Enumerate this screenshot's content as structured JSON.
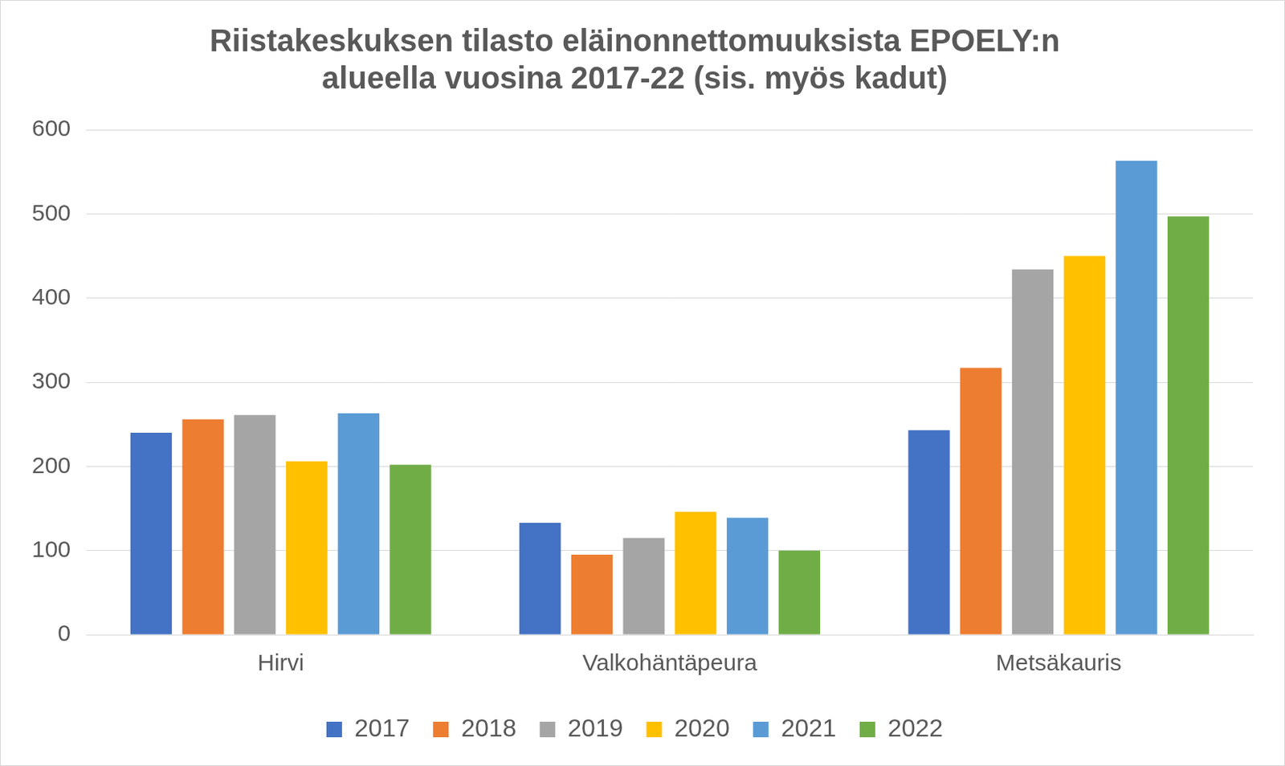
{
  "chart_data": {
    "type": "bar",
    "title": [
      "Riistakeskuksen tilasto eläinonnettomuuksista EPOELY:n",
      "alueella vuosina 2017-22 (sis. myös kadut)"
    ],
    "categories": [
      "Hirvi",
      "Valkohäntäpeura",
      "Metsäkauris"
    ],
    "series": [
      {
        "name": "2017",
        "color": "#4472c4",
        "values": [
          240,
          133,
          243
        ]
      },
      {
        "name": "2018",
        "color": "#ed7d31",
        "values": [
          256,
          95,
          317
        ]
      },
      {
        "name": "2019",
        "color": "#a5a5a5",
        "values": [
          261,
          115,
          434
        ]
      },
      {
        "name": "2020",
        "color": "#ffc000",
        "values": [
          206,
          146,
          450
        ]
      },
      {
        "name": "2021",
        "color": "#5b9bd5",
        "values": [
          263,
          139,
          563
        ]
      },
      {
        "name": "2022",
        "color": "#70ad47",
        "values": [
          202,
          100,
          497
        ]
      }
    ],
    "ylim": [
      0,
      600
    ],
    "yticks": [
      0,
      100,
      200,
      300,
      400,
      500,
      600
    ],
    "grid": true,
    "legend": "bottom"
  }
}
